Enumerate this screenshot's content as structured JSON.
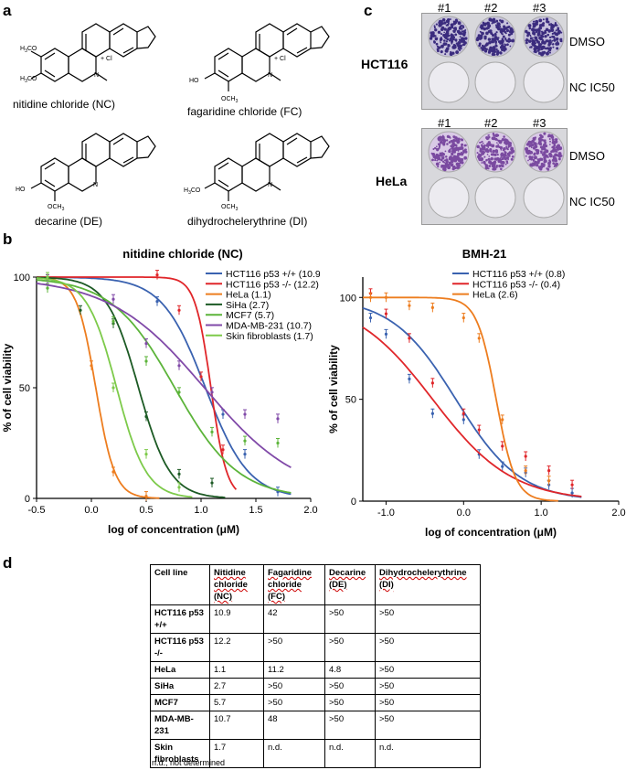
{
  "panel_labels": {
    "a": "a",
    "b": "b",
    "c": "c",
    "d": "d"
  },
  "compounds": [
    {
      "name": "nitidine chloride (NC)",
      "substituents": [
        "H3CO",
        "H3CO"
      ],
      "charge": "N+",
      "counter": "Cl−"
    },
    {
      "name": "fagaridine chloride (FC)",
      "substituents": [
        "HO",
        "OCH3"
      ],
      "charge": "N+",
      "counter": "Cl−"
    },
    {
      "name": "decarine (DE)",
      "substituents": [
        "HO",
        "OCH3"
      ],
      "charge": "N",
      "counter": ""
    },
    {
      "name": "dihydrochelerythrine (DI)",
      "substituents": [
        "H3CO",
        "OCH3"
      ],
      "charge": "N",
      "counter": ""
    }
  ],
  "plates": {
    "wells": [
      "#1",
      "#2",
      "#3"
    ],
    "rows": [
      "DMSO",
      "NC IC50"
    ],
    "cells": [
      "HCT116",
      "HeLa"
    ]
  },
  "chart_data": [
    {
      "type": "line",
      "title": "nitidine chloride (NC)",
      "xlabel": "log of concentration (μM)",
      "ylabel": "% of cell viability",
      "xlim": [
        -0.5,
        2.0
      ],
      "ylim": [
        0,
        100
      ],
      "xticks": [
        "-0.5",
        "0.0",
        "0.5",
        "1.0",
        "1.5",
        "2.0"
      ],
      "yticks": [
        "0",
        "50",
        "100"
      ],
      "legend_position": "top-right",
      "series": [
        {
          "name": "HCT116 p53 +/+ (10.9)",
          "color": "#3a62b0",
          "ic50_log": 1.04,
          "hill": 2.2,
          "x": [
            -0.4,
            0.6,
            1.2,
            1.4,
            1.7
          ],
          "y": [
            100,
            89,
            38,
            20,
            3
          ]
        },
        {
          "name": "HCT116 p53 -/- (12.2)",
          "color": "#e0262a",
          "ic50_log": 1.09,
          "hill": 6,
          "x": [
            -0.4,
            0.6,
            0.8,
            1.0,
            1.2
          ],
          "y": [
            100,
            101,
            85,
            55,
            22
          ]
        },
        {
          "name": "HeLa (1.1)",
          "color": "#ed7d1f",
          "ic50_log": 0.04,
          "hill": 5,
          "x": [
            -0.4,
            0.0,
            0.2,
            0.5
          ],
          "y": [
            99,
            60,
            12,
            1
          ]
        },
        {
          "name": "SiHa (2.7)",
          "color": "#1c5a24",
          "ic50_log": 0.43,
          "hill": 3,
          "x": [
            -0.4,
            -0.1,
            0.2,
            0.5,
            0.8,
            1.1
          ],
          "y": [
            99,
            85,
            79,
            37,
            11,
            7
          ]
        },
        {
          "name": "MCF7 (5.7)",
          "color": "#5cb43a",
          "ic50_log": 0.76,
          "hill": 1.5,
          "x": [
            -0.4,
            0.2,
            0.5,
            0.8,
            1.1,
            1.4,
            1.7
          ],
          "y": [
            95,
            80,
            62,
            48,
            30,
            26,
            25
          ]
        },
        {
          "name": "MDA-MB-231 (10.7)",
          "color": "#8049a8",
          "ic50_log": 1.03,
          "hill": 1,
          "x": [
            -0.4,
            0.2,
            0.5,
            0.8,
            1.1,
            1.4,
            1.7
          ],
          "y": [
            99,
            90,
            70,
            60,
            48,
            38,
            36
          ]
        },
        {
          "name": "Skin fibroblasts (1.7)",
          "color": "#7dca4a",
          "ic50_log": 0.23,
          "hill": 3.2,
          "x": [
            -0.4,
            0.2,
            0.5,
            0.8
          ],
          "y": [
            100,
            50,
            20,
            5
          ]
        }
      ]
    },
    {
      "type": "line",
      "title": "BMH-21",
      "xlabel": "log of concentration (μM)",
      "ylabel": "% of cell viability",
      "xlim": [
        -1.3,
        2.0
      ],
      "ylim": [
        0,
        110
      ],
      "xticks": [
        "-1.0",
        "0.0",
        "1.0",
        "2.0"
      ],
      "yticks": [
        "0",
        "50",
        "100"
      ],
      "legend_position": "top-right",
      "series": [
        {
          "name": "HCT116 p53 +/+ (0.8)",
          "color": "#3a62b0",
          "ic50_log": -0.1,
          "hill": 1.05,
          "x": [
            -1.2,
            -1.0,
            -0.7,
            -0.4,
            0.0,
            0.2,
            0.5,
            0.8,
            1.1,
            1.4
          ],
          "y": [
            90,
            82,
            60,
            43,
            40,
            23,
            17,
            14,
            8,
            4
          ]
        },
        {
          "name": "HCT116 p53 -/- (0.4)",
          "color": "#e0262a",
          "ic50_log": -0.4,
          "hill": 0.85,
          "x": [
            -1.2,
            -1.0,
            -0.7,
            -0.4,
            0.0,
            0.2,
            0.5,
            0.8,
            1.1,
            1.4
          ],
          "y": [
            102,
            92,
            80,
            58,
            43,
            35,
            27,
            22,
            15,
            8
          ]
        },
        {
          "name": "HeLa (2.6)",
          "color": "#ed7d1f",
          "ic50_log": 0.42,
          "hill": 3.5,
          "x": [
            -1.2,
            -1.0,
            -0.7,
            -0.4,
            0.0,
            0.2,
            0.5,
            0.8,
            1.1
          ],
          "y": [
            100,
            100,
            96,
            95,
            90,
            80,
            40,
            15,
            10
          ]
        }
      ]
    }
  ],
  "table": {
    "headers": [
      "Cell line",
      "Nitidine chloride (NC)",
      "Fagaridine chloride (FC)",
      "Decarine (DE)",
      "Dihydrochelerythrine (DI)"
    ],
    "rows": [
      [
        "HCT116 p53 +/+",
        "10.9",
        "42",
        ">50",
        ">50"
      ],
      [
        "HCT116 p53 -/-",
        "12.2",
        ">50",
        ">50",
        ">50"
      ],
      [
        "HeLa",
        "1.1",
        "11.2",
        "4.8",
        ">50"
      ],
      [
        "SiHa",
        "2.7",
        ">50",
        ">50",
        ">50"
      ],
      [
        "MCF7",
        "5.7",
        ">50",
        ">50",
        ">50"
      ],
      [
        "MDA-MB-231",
        "10.7",
        "48",
        ">50",
        ">50"
      ],
      [
        "Skin fibroblasts",
        "1.7",
        "n.d.",
        "n.d.",
        "n.d."
      ]
    ],
    "footnote": "n.d., not determined"
  }
}
